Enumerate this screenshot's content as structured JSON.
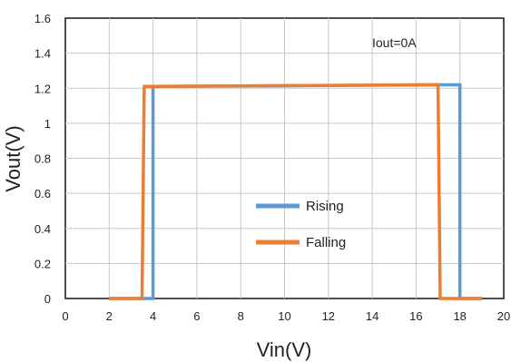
{
  "chart_data": {
    "type": "line",
    "title": "",
    "xlabel": "Vin(V)",
    "ylabel": "Vout(V)",
    "xlim": [
      0,
      20
    ],
    "ylim": [
      0,
      1.6
    ],
    "xticks": [
      0,
      2,
      4,
      6,
      8,
      10,
      12,
      14,
      16,
      18,
      20
    ],
    "yticks": [
      0,
      0.2,
      0.4,
      0.6,
      0.8,
      1,
      1.2,
      1.4,
      1.6
    ],
    "xtick_labels": [
      "0",
      "2",
      "4",
      "6",
      "8",
      "10",
      "12",
      "14",
      "16",
      "18",
      "20"
    ],
    "ytick_labels": [
      "0",
      "0.2",
      "0.4",
      "0.6",
      "0.8",
      "1",
      "1.2",
      "1.4",
      "1.6"
    ],
    "grid": true,
    "legend_position": "center",
    "annotation": "Iout=0A",
    "series": [
      {
        "name": "Rising",
        "color": "#5b9bd5",
        "x": [
          2.0,
          4.0,
          4.0,
          4.1,
          18.0,
          18.0,
          18.1,
          19.0
        ],
        "y": [
          0.0,
          0.0,
          1.21,
          1.21,
          1.22,
          0.0,
          0.0,
          0.0
        ]
      },
      {
        "name": "Falling",
        "color": "#ed7d31",
        "x": [
          2.0,
          3.5,
          3.6,
          16.9,
          17.0,
          17.1,
          19.0
        ],
        "y": [
          0.0,
          0.0,
          1.21,
          1.22,
          1.22,
          0.0,
          0.0
        ]
      }
    ]
  }
}
